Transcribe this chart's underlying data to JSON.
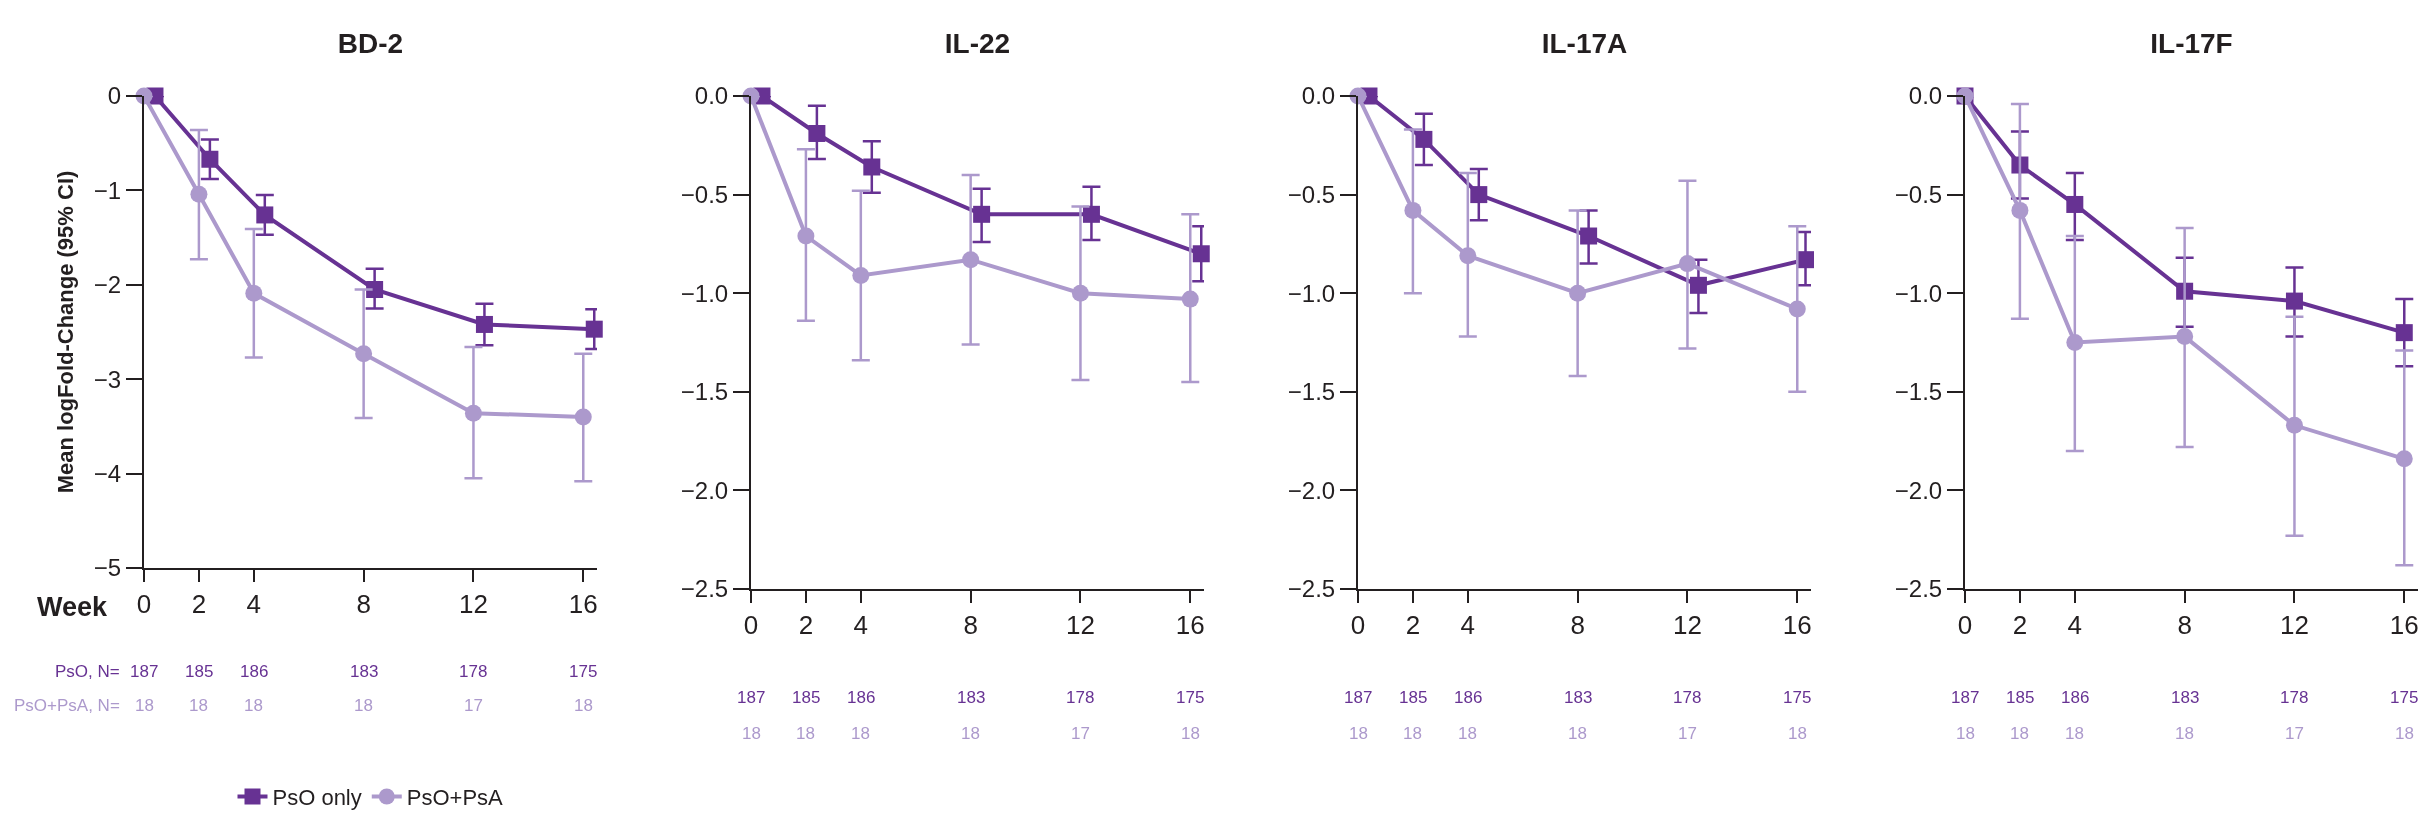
{
  "chart_data": [
    {
      "type": "line",
      "title": "BD-2",
      "ylabel": "Mean logFold-Change (95% CI)",
      "xlabel": "Week",
      "legend": "bottom",
      "grid": false,
      "line_style": "solid",
      "xlim": [
        0,
        16.5
      ],
      "xticks": [
        0,
        2,
        4,
        8,
        12,
        16
      ],
      "ylim": [
        -5,
        0
      ],
      "yticks": [
        0,
        {
          "value": -1,
          "label": "−1"
        },
        {
          "value": -2,
          "label": "−2"
        },
        {
          "value": -3,
          "label": "−3"
        },
        {
          "value": -4,
          "label": "−4"
        },
        {
          "value": -5,
          "label": "−5"
        }
      ],
      "series": [
        {
          "name": "PsO only",
          "color": "#673293",
          "marker": "square",
          "x": [
            0.4,
            2.4,
            4.4,
            8.4,
            12.4,
            16.4
          ],
          "values": [
            0,
            -0.67,
            -1.26,
            -2.05,
            -2.42,
            -2.47
          ],
          "errors": [
            null,
            [
              -0.88,
              -0.46
            ],
            [
              -1.47,
              -1.05
            ],
            [
              -2.25,
              -1.83
            ],
            [
              -2.64,
              -2.2
            ],
            [
              -2.68,
              -2.26
            ]
          ]
        },
        {
          "name": "PsO+PsA",
          "color": "#ac99cc",
          "marker": "circle",
          "x": [
            0,
            2,
            4,
            8,
            12,
            16
          ],
          "values": [
            0,
            -1.04,
            -2.09,
            -2.73,
            -3.36,
            -3.4
          ],
          "errors": [
            null,
            [
              -1.73,
              -0.36
            ],
            [
              -2.77,
              -1.41
            ],
            [
              -3.41,
              -2.05
            ],
            [
              -4.05,
              -2.66
            ],
            [
              -4.08,
              -2.73
            ]
          ]
        }
      ],
      "annotations": [
        "PsO, N=",
        "187",
        "185",
        "186",
        "183",
        "178",
        "175",
        "PsO+PsA, N=",
        "18",
        "18",
        "18",
        "18",
        "17",
        "18"
      ]
    },
    {
      "type": "line",
      "title": "IL-22",
      "grid": false,
      "line_style": "solid",
      "xlim": [
        0,
        16.5
      ],
      "xticks": [
        0,
        2,
        4,
        8,
        12,
        16
      ],
      "ylim": [
        -2.5,
        0
      ],
      "yticks": [
        {
          "value": 0,
          "label": "0.0"
        },
        {
          "value": -0.5,
          "label": "−0.5"
        },
        {
          "value": -1,
          "label": "−1.0"
        },
        {
          "value": -1.5,
          "label": "−1.5"
        },
        {
          "value": -2,
          "label": "−2.0"
        },
        {
          "value": -2.5,
          "label": "−2.5"
        }
      ],
      "series": [
        {
          "color": "#673293",
          "marker": "square",
          "x": [
            0.4,
            2.4,
            4.4,
            8.4,
            12.4,
            16.4
          ],
          "values": [
            0,
            -0.19,
            -0.36,
            -0.6,
            -0.6,
            -0.8
          ],
          "errors": [
            null,
            [
              -0.32,
              -0.05
            ],
            [
              -0.49,
              -0.23
            ],
            [
              -0.74,
              -0.47
            ],
            [
              -0.73,
              -0.46
            ],
            [
              -0.94,
              -0.66
            ]
          ]
        },
        {
          "color": "#ac99cc",
          "marker": "circle",
          "x": [
            0,
            2,
            4,
            8,
            12,
            16
          ],
          "values": [
            0,
            -0.71,
            -0.91,
            -0.83,
            -1.0,
            -1.03
          ],
          "errors": [
            null,
            [
              -1.14,
              -0.27
            ],
            [
              -1.34,
              -0.48
            ],
            [
              -1.26,
              -0.4
            ],
            [
              -1.44,
              -0.56
            ],
            [
              -1.45,
              -0.6
            ]
          ]
        }
      ],
      "annotations": [
        "187",
        "185",
        "186",
        "183",
        "178",
        "175",
        "18",
        "18",
        "18",
        "18",
        "17",
        "18"
      ]
    },
    {
      "type": "line",
      "title": "IL-17A",
      "grid": false,
      "line_style": "solid",
      "xlim": [
        0,
        16.5
      ],
      "xticks": [
        0,
        2,
        4,
        8,
        12,
        16
      ],
      "ylim": [
        -2.5,
        0
      ],
      "yticks": [
        {
          "value": 0,
          "label": "0.0"
        },
        {
          "value": -0.5,
          "label": "−0.5"
        },
        {
          "value": -1,
          "label": "−1.0"
        },
        {
          "value": -1.5,
          "label": "−1.5"
        },
        {
          "value": -2,
          "label": "−2.0"
        },
        {
          "value": -2.5,
          "label": "−2.5"
        }
      ],
      "series": [
        {
          "color": "#673293",
          "marker": "square",
          "x": [
            0.4,
            2.4,
            4.4,
            8.4,
            12.4,
            16.3
          ],
          "values": [
            0,
            -0.22,
            -0.5,
            -0.71,
            -0.96,
            -0.83
          ],
          "errors": [
            null,
            [
              -0.35,
              -0.09
            ],
            [
              -0.63,
              -0.37
            ],
            [
              -0.85,
              -0.58
            ],
            [
              -1.1,
              -0.83
            ],
            [
              -0.96,
              -0.69
            ]
          ]
        },
        {
          "color": "#ac99cc",
          "marker": "circle",
          "x": [
            0,
            2,
            4,
            8,
            12,
            16
          ],
          "values": [
            0,
            -0.58,
            -0.81,
            -1.0,
            -0.85,
            -1.08
          ],
          "errors": [
            null,
            [
              -1.0,
              -0.17
            ],
            [
              -1.22,
              -0.39
            ],
            [
              -1.42,
              -0.58
            ],
            [
              -1.28,
              -0.43
            ],
            [
              -1.5,
              -0.66
            ]
          ]
        }
      ],
      "annotations": [
        "187",
        "185",
        "186",
        "183",
        "178",
        "175",
        "18",
        "18",
        "18",
        "18",
        "17",
        "18"
      ]
    },
    {
      "type": "line",
      "title": "IL-17F",
      "grid": false,
      "line_style": "solid",
      "xlim": [
        0,
        16.5
      ],
      "xticks": [
        0,
        2,
        4,
        8,
        12,
        16
      ],
      "ylim": [
        -2.5,
        0
      ],
      "yticks": [
        {
          "value": 0,
          "label": "0.0"
        },
        {
          "value": -0.5,
          "label": "−0.5"
        },
        {
          "value": -1,
          "label": "−1.0"
        },
        {
          "value": -1.5,
          "label": "−1.5"
        },
        {
          "value": -2,
          "label": "−2.0"
        },
        {
          "value": -2.5,
          "label": "−2.5"
        }
      ],
      "series": [
        {
          "color": "#673293",
          "marker": "square",
          "x": [
            0,
            2,
            4,
            8,
            12,
            16
          ],
          "values": [
            0,
            -0.35,
            -0.55,
            -0.99,
            -1.04,
            -1.2
          ],
          "errors": [
            null,
            [
              -0.52,
              -0.18
            ],
            [
              -0.73,
              -0.39
            ],
            [
              -1.17,
              -0.82
            ],
            [
              -1.22,
              -0.87
            ],
            [
              -1.37,
              -1.03
            ]
          ]
        },
        {
          "color": "#ac99cc",
          "marker": "circle",
          "x": [
            0,
            2,
            4,
            8,
            12,
            16
          ],
          "values": [
            0,
            -0.58,
            -1.25,
            -1.22,
            -1.67,
            -1.84
          ],
          "errors": [
            null,
            [
              -1.13,
              -0.04
            ],
            [
              -1.8,
              -0.71
            ],
            [
              -1.78,
              -0.67
            ],
            [
              -2.23,
              -1.12
            ],
            [
              -2.38,
              -1.29
            ]
          ]
        }
      ],
      "annotations": [
        "187",
        "185",
        "186",
        "183",
        "178",
        "175",
        "18",
        "18",
        "18",
        "18",
        "17",
        "18"
      ]
    }
  ]
}
